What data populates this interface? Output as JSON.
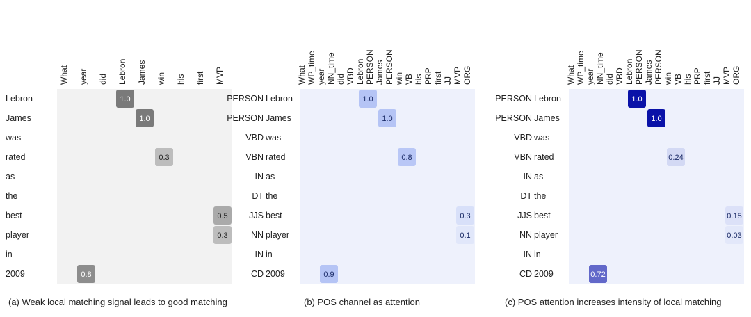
{
  "panels": [
    {
      "id": "a",
      "caption": "(a) Weak local matching signal leads to good matching",
      "columns": [
        "What",
        "year",
        "did",
        "Lebron",
        "James",
        "win",
        "his",
        "first",
        "MVP"
      ],
      "rows": [
        "Lebron",
        "James",
        "was",
        "rated",
        "as",
        "the",
        "best",
        "player",
        "in",
        "2009"
      ],
      "cells": [
        {
          "row": 0,
          "col": 3,
          "value": "1.0",
          "level": 1.0
        },
        {
          "row": 1,
          "col": 4,
          "value": "1.0",
          "level": 1.0
        },
        {
          "row": 3,
          "col": 5,
          "value": "0.3",
          "level": 0.3
        },
        {
          "row": 6,
          "col": 8,
          "value": "0.5",
          "level": 0.5
        },
        {
          "row": 7,
          "col": 8,
          "value": "0.3",
          "level": 0.3
        },
        {
          "row": 9,
          "col": 1,
          "value": "0.8",
          "level": 0.8
        }
      ],
      "colors": {
        "background": "#f2f2f2",
        "low": "#d9d9d9",
        "high": "#7a7a7a",
        "text_dark": "#222222",
        "text_light": "#ffffff"
      }
    },
    {
      "id": "b",
      "caption": "(b) POS channel as attention",
      "columns": [
        "What",
        "WP_time",
        "year",
        "NN_time",
        "did",
        "VBD",
        "Lebron",
        "PERSON",
        "James",
        "PERSON",
        "win",
        "VB",
        "his",
        "PRP",
        "first",
        "JJ",
        "MVP",
        "ORG"
      ],
      "row_tags": [
        "PERSON",
        "PERSON",
        "VBD",
        "VBN",
        "IN",
        "DT",
        "JJS",
        "NN",
        "IN",
        "CD"
      ],
      "rows": [
        "Lebron",
        "James",
        "was",
        "rated",
        "as",
        "the",
        "best",
        "player",
        "in",
        "2009"
      ],
      "cells": [
        {
          "row": 0,
          "col": 3,
          "value": "1.0",
          "level": 0.55
        },
        {
          "row": 1,
          "col": 4,
          "value": "1.0",
          "level": 0.55
        },
        {
          "row": 3,
          "col": 5,
          "value": "0.8",
          "level": 0.5
        },
        {
          "row": 6,
          "col": 8,
          "value": "0.3",
          "level": 0.15
        },
        {
          "row": 7,
          "col": 8,
          "value": "0.1",
          "level": 0.05
        },
        {
          "row": 9,
          "col": 1,
          "value": "0.9",
          "level": 0.55
        }
      ],
      "colors": {
        "background": "#eef1fc",
        "low": "#e5eafb",
        "high": "#8da4f0",
        "text_dark": "#1a2a66",
        "text_light": "#ffffff"
      }
    },
    {
      "id": "c",
      "caption": "(c) POS attention increases intensity of local matching",
      "columns": [
        "What",
        "WP_time",
        "year",
        "NN_time",
        "did",
        "VBD",
        "Lebron",
        "PERSON",
        "James",
        "PERSON",
        "win",
        "VB",
        "his",
        "PRP",
        "first",
        "JJ",
        "MVP",
        "ORG"
      ],
      "row_tags": [
        "PERSON",
        "PERSON",
        "VBD",
        "VBN",
        "IN",
        "DT",
        "JJS",
        "NN",
        "IN",
        "CD"
      ],
      "rows": [
        "Lebron",
        "James",
        "was",
        "rated",
        "as",
        "the",
        "best",
        "player",
        "in",
        "2009"
      ],
      "cells": [
        {
          "row": 0,
          "col": 3,
          "value": "1.0",
          "level": 1.0
        },
        {
          "row": 1,
          "col": 4,
          "value": "1.0",
          "level": 1.0
        },
        {
          "row": 3,
          "col": 5,
          "value": "0.24",
          "level": 0.08
        },
        {
          "row": 6,
          "col": 8,
          "value": "0.15",
          "level": 0.04
        },
        {
          "row": 7,
          "col": 8,
          "value": "0.03",
          "level": 0.01
        },
        {
          "row": 9,
          "col": 1,
          "value": "0.72",
          "level": 0.6
        }
      ],
      "colors": {
        "background": "#eef1fc",
        "low": "#e5eafb",
        "high": "#0a12a8",
        "text_dark": "#1a2a66",
        "text_light": "#ffffff"
      }
    }
  ]
}
